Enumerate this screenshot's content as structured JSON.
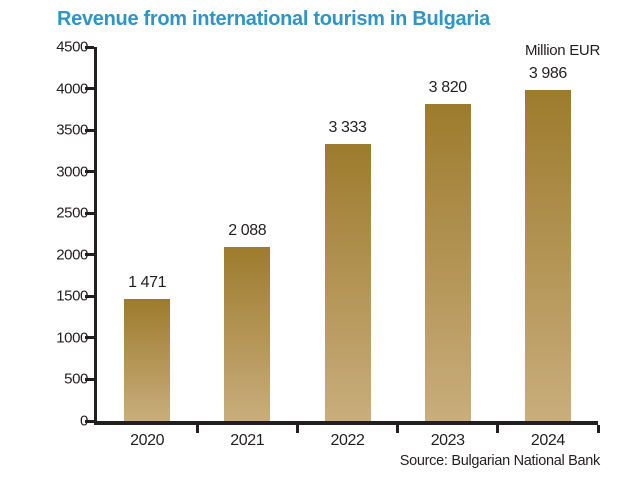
{
  "title": "Revenue from international tourism in Bulgaria",
  "unit_label": "Million EUR",
  "source": "Source: Bulgarian National Bank",
  "colors": {
    "title": "#2E95C6",
    "text": "#231F20",
    "axis": "#231F20",
    "bar_gradient_top": "#9D7B2D",
    "bar_gradient_bottom": "#C9AD7C"
  },
  "chart_data": {
    "type": "bar",
    "categories": [
      "2020",
      "2021",
      "2022",
      "2023",
      "2024"
    ],
    "values": [
      1471,
      2088,
      3333,
      3820,
      3986
    ],
    "value_labels": [
      "1 471",
      "2 088",
      "3 333",
      "3 820",
      "3 986"
    ],
    "title": "Revenue from international tourism in Bulgaria",
    "xlabel": "",
    "ylabel": "Million EUR",
    "ylim": [
      0,
      4500
    ],
    "ytick_step": 500,
    "ytick_labels": [
      "0",
      "500",
      "1000",
      "1500",
      "2000",
      "2500",
      "3000",
      "3500",
      "4000",
      "4500"
    ],
    "grid": false,
    "legend": false,
    "bar_orientation": "vertical"
  }
}
